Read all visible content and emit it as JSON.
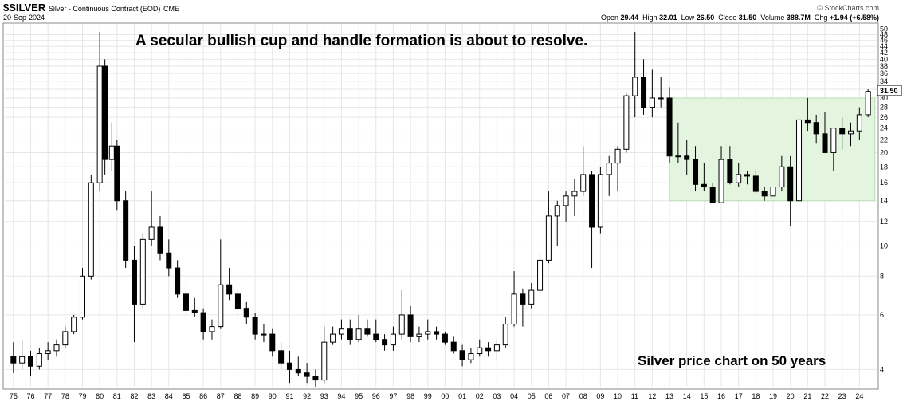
{
  "header": {
    "symbol": "$SILVER",
    "description": "Silver - Continuous Contract (EOD)",
    "exchange": "CME",
    "date": "20-Sep-2024",
    "brand": "© StockCharts.com",
    "open_label": "Open",
    "open": "29.44",
    "high_label": "High",
    "high": "32.01",
    "low_label": "Low",
    "low": "26.50",
    "close_label": "Close",
    "close": "31.50",
    "volume_label": "Volume",
    "volume": "388.7M",
    "chg_label": "Chg",
    "chg": "+1.94 (+6.58%)"
  },
  "chart_data": {
    "type": "candlestick",
    "scale": "log",
    "ylim": [
      3.5,
      52
    ],
    "xlim": [
      1974.5,
      2025.0
    ],
    "annotations": {
      "title": "A secular bullish cup and handle formation is about to resolve.",
      "subtitle": "Silver price chart on 50 years"
    },
    "last_price_label": "31.50",
    "y_ticks": [
      4,
      6,
      8,
      10,
      12,
      14,
      16,
      18,
      20,
      22,
      24,
      26,
      28,
      30,
      32,
      34,
      36,
      38,
      40,
      42,
      44,
      46,
      48,
      50
    ],
    "x_ticks": [
      "75",
      "76",
      "77",
      "78",
      "79",
      "80",
      "81",
      "82",
      "83",
      "84",
      "85",
      "86",
      "87",
      "88",
      "89",
      "90",
      "91",
      "92",
      "93",
      "94",
      "95",
      "96",
      "97",
      "98",
      "99",
      "00",
      "01",
      "02",
      "03",
      "04",
      "05",
      "06",
      "07",
      "08",
      "09",
      "10",
      "11",
      "12",
      "13",
      "14",
      "15",
      "16",
      "17",
      "18",
      "19",
      "20",
      "21",
      "22",
      "23",
      "24"
    ],
    "highlight_zone": {
      "x_start": 2013.0,
      "x_end": 2024.9,
      "y_low": 14,
      "y_high": 30,
      "color": "#e3f4df",
      "border": "#b9dfb2"
    },
    "colors": {
      "up": "#ffffff",
      "down": "#000000",
      "outline": "#000000",
      "grid": "#e6e6e6"
    },
    "series": [
      {
        "values": [
          [
            1975.0,
            4.4,
            4.9,
            3.9,
            4.2
          ],
          [
            1975.5,
            4.2,
            5.0,
            4.0,
            4.4
          ],
          [
            1976.0,
            4.4,
            4.6,
            3.8,
            4.1
          ],
          [
            1976.5,
            4.1,
            4.7,
            4.0,
            4.5
          ],
          [
            1977.0,
            4.5,
            4.9,
            4.3,
            4.6
          ],
          [
            1977.5,
            4.6,
            5.0,
            4.4,
            4.8
          ],
          [
            1978.0,
            4.8,
            5.5,
            4.7,
            5.3
          ],
          [
            1978.5,
            5.3,
            6.0,
            5.2,
            5.9
          ],
          [
            1979.0,
            5.9,
            8.5,
            5.8,
            8.0
          ],
          [
            1979.5,
            8.0,
            17.0,
            7.8,
            16.0
          ],
          [
            1980.0,
            16.0,
            49.0,
            15.0,
            38.0
          ],
          [
            1980.3,
            38.0,
            40.0,
            17.0,
            19.0
          ],
          [
            1980.7,
            19.0,
            25.0,
            17.5,
            21.0
          ],
          [
            1981.0,
            21.0,
            22.0,
            13.0,
            14.0
          ],
          [
            1981.5,
            14.0,
            15.0,
            8.5,
            9.0
          ],
          [
            1982.0,
            9.0,
            10.0,
            4.9,
            6.5
          ],
          [
            1982.5,
            6.5,
            11.0,
            6.3,
            10.5
          ],
          [
            1983.0,
            10.5,
            15.0,
            10.0,
            11.5
          ],
          [
            1983.5,
            11.5,
            12.5,
            9.0,
            9.5
          ],
          [
            1984.0,
            9.5,
            10.5,
            8.0,
            8.5
          ],
          [
            1984.5,
            8.5,
            9.0,
            6.8,
            7.0
          ],
          [
            1985.0,
            7.0,
            7.5,
            5.9,
            6.2
          ],
          [
            1985.5,
            6.2,
            6.8,
            5.9,
            6.1
          ],
          [
            1986.0,
            6.1,
            6.3,
            5.0,
            5.3
          ],
          [
            1986.5,
            5.3,
            5.8,
            5.0,
            5.5
          ],
          [
            1987.0,
            5.5,
            10.5,
            5.4,
            7.5
          ],
          [
            1987.5,
            7.5,
            8.5,
            6.7,
            7.0
          ],
          [
            1988.0,
            7.0,
            7.3,
            6.0,
            6.3
          ],
          [
            1988.5,
            6.3,
            6.6,
            5.6,
            5.9
          ],
          [
            1989.0,
            5.9,
            6.1,
            5.0,
            5.2
          ],
          [
            1989.5,
            5.2,
            5.6,
            4.9,
            5.2
          ],
          [
            1990.0,
            5.2,
            5.4,
            4.4,
            4.6
          ],
          [
            1990.5,
            4.6,
            4.9,
            4.0,
            4.2
          ],
          [
            1991.0,
            4.2,
            4.6,
            3.6,
            4.0
          ],
          [
            1991.5,
            4.0,
            4.4,
            3.8,
            3.9
          ],
          [
            1992.0,
            3.9,
            4.2,
            3.6,
            3.8
          ],
          [
            1992.5,
            3.8,
            4.0,
            3.5,
            3.7
          ],
          [
            1993.0,
            3.7,
            5.5,
            3.6,
            4.9
          ],
          [
            1993.5,
            4.9,
            5.5,
            4.8,
            5.2
          ],
          [
            1994.0,
            5.2,
            5.8,
            5.0,
            5.4
          ],
          [
            1994.5,
            5.4,
            5.8,
            4.8,
            5.0
          ],
          [
            1995.0,
            5.0,
            6.0,
            4.9,
            5.4
          ],
          [
            1995.5,
            5.4,
            5.8,
            5.1,
            5.2
          ],
          [
            1996.0,
            5.2,
            5.8,
            4.9,
            5.0
          ],
          [
            1996.5,
            5.0,
            5.2,
            4.6,
            4.8
          ],
          [
            1997.0,
            4.8,
            5.5,
            4.6,
            5.2
          ],
          [
            1997.5,
            5.2,
            7.2,
            5.0,
            6.0
          ],
          [
            1998.0,
            6.0,
            6.4,
            4.9,
            5.1
          ],
          [
            1998.5,
            5.1,
            5.5,
            4.9,
            5.2
          ],
          [
            1999.0,
            5.2,
            5.8,
            5.0,
            5.3
          ],
          [
            1999.5,
            5.3,
            5.5,
            5.0,
            5.2
          ],
          [
            2000.0,
            5.2,
            5.3,
            4.8,
            4.9
          ],
          [
            2000.5,
            4.9,
            5.1,
            4.5,
            4.6
          ],
          [
            2001.0,
            4.6,
            4.8,
            4.1,
            4.3
          ],
          [
            2001.5,
            4.3,
            4.7,
            4.2,
            4.5
          ],
          [
            2002.0,
            4.5,
            5.0,
            4.4,
            4.7
          ],
          [
            2002.5,
            4.7,
            4.9,
            4.4,
            4.6
          ],
          [
            2003.0,
            4.6,
            5.0,
            4.3,
            4.8
          ],
          [
            2003.5,
            4.8,
            5.9,
            4.7,
            5.6
          ],
          [
            2004.0,
            5.6,
            8.3,
            5.5,
            7.0
          ],
          [
            2004.5,
            7.0,
            7.3,
            5.5,
            6.5
          ],
          [
            2005.0,
            6.5,
            7.6,
            6.3,
            7.2
          ],
          [
            2005.5,
            7.2,
            9.5,
            7.0,
            9.0
          ],
          [
            2006.0,
            9.0,
            15.0,
            8.8,
            12.5
          ],
          [
            2006.5,
            12.5,
            14.0,
            10.0,
            13.5
          ],
          [
            2007.0,
            13.5,
            15.0,
            12.0,
            14.5
          ],
          [
            2007.5,
            14.5,
            16.5,
            12.5,
            15.0
          ],
          [
            2008.0,
            15.0,
            21.0,
            14.5,
            17.0
          ],
          [
            2008.5,
            17.0,
            17.5,
            8.5,
            11.5
          ],
          [
            2009.0,
            11.5,
            18.0,
            11.0,
            17.0
          ],
          [
            2009.5,
            17.0,
            19.5,
            14.5,
            18.5
          ],
          [
            2010.0,
            18.5,
            21.0,
            15.0,
            20.5
          ],
          [
            2010.5,
            20.5,
            31.0,
            20.0,
            30.5
          ],
          [
            2011.0,
            30.5,
            49.0,
            26.0,
            35.0
          ],
          [
            2011.5,
            35.0,
            40.0,
            26.5,
            28.0
          ],
          [
            2012.0,
            28.0,
            37.0,
            26.0,
            30.0
          ],
          [
            2012.5,
            30.0,
            35.0,
            28.0,
            30.0
          ],
          [
            2013.0,
            30.0,
            32.5,
            18.5,
            19.5
          ],
          [
            2013.5,
            19.5,
            25.0,
            18.5,
            19.5
          ],
          [
            2014.0,
            19.5,
            22.0,
            17.0,
            19.0
          ],
          [
            2014.5,
            19.0,
            21.0,
            15.0,
            15.8
          ],
          [
            2015.0,
            15.8,
            18.5,
            15.0,
            15.5
          ],
          [
            2015.5,
            15.5,
            16.0,
            13.8,
            13.8
          ],
          [
            2016.0,
            13.8,
            21.0,
            13.8,
            19.0
          ],
          [
            2016.5,
            19.0,
            21.0,
            15.8,
            16.0
          ],
          [
            2017.0,
            16.0,
            18.5,
            15.5,
            17.0
          ],
          [
            2017.5,
            17.0,
            17.5,
            15.8,
            16.8
          ],
          [
            2018.0,
            16.8,
            17.5,
            14.8,
            15.0
          ],
          [
            2018.5,
            15.0,
            15.5,
            14.0,
            14.5
          ],
          [
            2019.0,
            14.5,
            15.5,
            14.5,
            15.5
          ],
          [
            2019.5,
            15.5,
            19.5,
            15.0,
            18.0
          ],
          [
            2020.0,
            18.0,
            19.5,
            11.6,
            14.0
          ],
          [
            2020.5,
            14.0,
            29.8,
            14.0,
            25.5
          ],
          [
            2021.0,
            25.5,
            30.0,
            23.5,
            25.0
          ],
          [
            2021.5,
            25.0,
            26.5,
            21.5,
            23.0
          ],
          [
            2022.0,
            23.0,
            27.0,
            20.0,
            20.0
          ],
          [
            2022.5,
            20.0,
            24.0,
            17.5,
            24.0
          ],
          [
            2023.0,
            24.0,
            26.0,
            20.5,
            23.0
          ],
          [
            2023.5,
            23.0,
            25.0,
            21.0,
            23.5
          ],
          [
            2024.0,
            23.5,
            28.0,
            22.0,
            26.5
          ],
          [
            2024.5,
            26.5,
            32.0,
            26.0,
            31.5
          ]
        ]
      }
    ]
  }
}
